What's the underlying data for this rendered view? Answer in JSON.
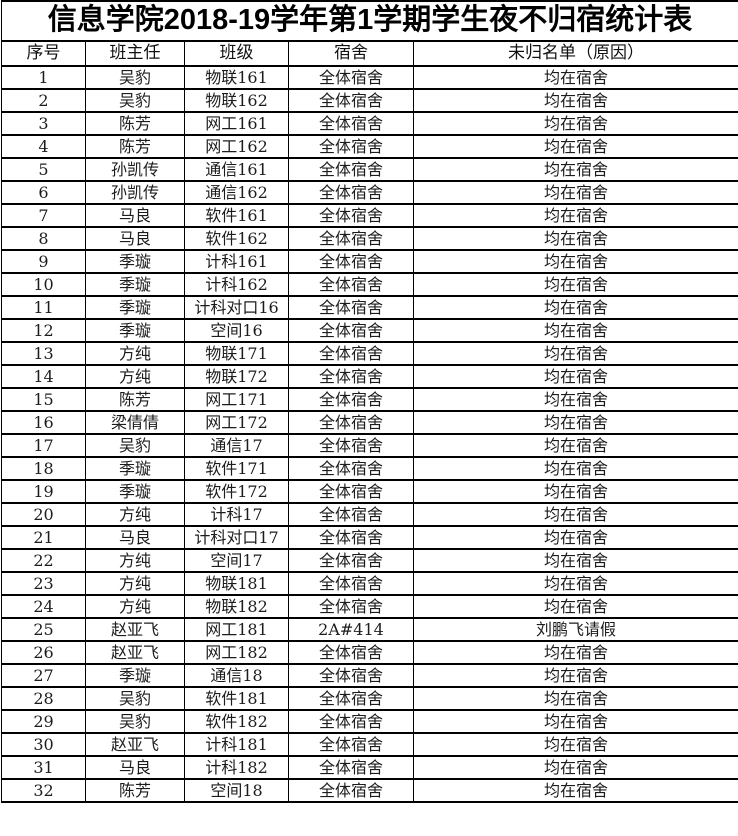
{
  "title": "信息学院2018-19学年第1学期学生夜不归宿统计表",
  "table": {
    "headers": [
      "序号",
      "班主任",
      "班级",
      "宿舍",
      "未归名单（原因）"
    ],
    "rows": [
      [
        "1",
        "吴豹",
        "物联161",
        "全体宿舍",
        "均在宿舍"
      ],
      [
        "2",
        "吴豹",
        "物联162",
        "全体宿舍",
        "均在宿舍"
      ],
      [
        "3",
        "陈芳",
        "网工161",
        "全体宿舍",
        "均在宿舍"
      ],
      [
        "4",
        "陈芳",
        "网工162",
        "全体宿舍",
        "均在宿舍"
      ],
      [
        "5",
        "孙凯传",
        "通信161",
        "全体宿舍",
        "均在宿舍"
      ],
      [
        "6",
        "孙凯传",
        "通信162",
        "全体宿舍",
        "均在宿舍"
      ],
      [
        "7",
        "马良",
        "软件161",
        "全体宿舍",
        "均在宿舍"
      ],
      [
        "8",
        "马良",
        "软件162",
        "全体宿舍",
        "均在宿舍"
      ],
      [
        "9",
        "季璇",
        "计科161",
        "全体宿舍",
        "均在宿舍"
      ],
      [
        "10",
        "季璇",
        "计科162",
        "全体宿舍",
        "均在宿舍"
      ],
      [
        "11",
        "季璇",
        "计科对口16",
        "全体宿舍",
        "均在宿舍"
      ],
      [
        "12",
        "季璇",
        "空间16",
        "全体宿舍",
        "均在宿舍"
      ],
      [
        "13",
        "方纯",
        "物联171",
        "全体宿舍",
        "均在宿舍"
      ],
      [
        "14",
        "方纯",
        "物联172",
        "全体宿舍",
        "均在宿舍"
      ],
      [
        "15",
        "陈芳",
        "网工171",
        "全体宿舍",
        "均在宿舍"
      ],
      [
        "16",
        "梁倩倩",
        "网工172",
        "全体宿舍",
        "均在宿舍"
      ],
      [
        "17",
        "吴豹",
        "通信17",
        "全体宿舍",
        "均在宿舍"
      ],
      [
        "18",
        "季璇",
        "软件171",
        "全体宿舍",
        "均在宿舍"
      ],
      [
        "19",
        "季璇",
        "软件172",
        "全体宿舍",
        "均在宿舍"
      ],
      [
        "20",
        "方纯",
        "计科17",
        "全体宿舍",
        "均在宿舍"
      ],
      [
        "21",
        "马良",
        "计科对口17",
        "全体宿舍",
        "均在宿舍"
      ],
      [
        "22",
        "方纯",
        "空间17",
        "全体宿舍",
        "均在宿舍"
      ],
      [
        "23",
        "方纯",
        "物联181",
        "全体宿舍",
        "均在宿舍"
      ],
      [
        "24",
        "方纯",
        "物联182",
        "全体宿舍",
        "均在宿舍"
      ],
      [
        "25",
        "赵亚飞",
        "网工181",
        "2A#414",
        "刘鹏飞请假"
      ],
      [
        "26",
        "赵亚飞",
        "网工182",
        "全体宿舍",
        "均在宿舍"
      ],
      [
        "27",
        "季璇",
        "通信18",
        "全体宿舍",
        "均在宿舍"
      ],
      [
        "28",
        "吴豹",
        "软件181",
        "全体宿舍",
        "均在宿舍"
      ],
      [
        "29",
        "吴豹",
        "软件182",
        "全体宿舍",
        "均在宿舍"
      ],
      [
        "30",
        "赵亚飞",
        "计科181",
        "全体宿舍",
        "均在宿舍"
      ],
      [
        "31",
        "马良",
        "计科182",
        "全体宿舍",
        "均在宿舍"
      ],
      [
        "32",
        "陈芳",
        "空间18",
        "全体宿舍",
        "均在宿舍"
      ]
    ]
  }
}
